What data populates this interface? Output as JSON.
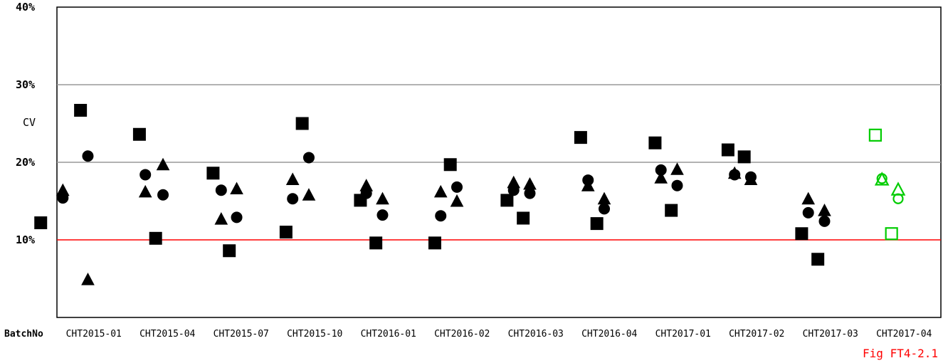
{
  "chart_data": {
    "type": "scatter",
    "xlabel": "BatchNo",
    "ylabel": "CV",
    "ylim": [
      0,
      40
    ],
    "yticks": [
      10,
      20,
      30,
      40
    ],
    "ytick_labels": [
      "10%",
      "20%",
      "30%",
      "40%"
    ],
    "grid": true,
    "reference_line": {
      "value": 10,
      "color": "#ff0000"
    },
    "figure_label": "Fig FT4-2.1",
    "figure_label_color": "#ff0000",
    "highlight_color": "#00cc00",
    "categories": [
      "CHT2015-01",
      "CHT2015-04",
      "CHT2015-07",
      "CHT2015-10",
      "CHT2016-01",
      "CHT2016-02",
      "CHT2016-03",
      "CHT2016-04",
      "CHT2017-01",
      "CHT2017-02",
      "CHT2017-03",
      "CHT2017-04"
    ],
    "points": [
      {
        "c": 0,
        "o": -0.22,
        "shape": "square",
        "y": 12.2
      },
      {
        "c": 0,
        "o": 0.32,
        "shape": "square",
        "y": 26.7
      },
      {
        "c": 0,
        "o": 0.08,
        "shape": "circle",
        "y": 15.4
      },
      {
        "c": 0,
        "o": 0.08,
        "shape": "triangle",
        "y": 16.4
      },
      {
        "c": 0,
        "o": 0.42,
        "shape": "circle",
        "y": 20.8
      },
      {
        "c": 0,
        "o": 0.42,
        "shape": "triangle",
        "y": 4.9
      },
      {
        "c": 1,
        "o": 0.12,
        "shape": "square",
        "y": 23.6
      },
      {
        "c": 1,
        "o": 0.34,
        "shape": "square",
        "y": 10.2
      },
      {
        "c": 1,
        "o": 0.2,
        "shape": "circle",
        "y": 18.4
      },
      {
        "c": 1,
        "o": 0.2,
        "shape": "triangle",
        "y": 16.2
      },
      {
        "c": 1,
        "o": 0.44,
        "shape": "circle",
        "y": 15.8
      },
      {
        "c": 1,
        "o": 0.44,
        "shape": "triangle",
        "y": 19.7
      },
      {
        "c": 2,
        "o": 0.12,
        "shape": "square",
        "y": 18.6
      },
      {
        "c": 2,
        "o": 0.34,
        "shape": "square",
        "y": 8.6
      },
      {
        "c": 2,
        "o": 0.23,
        "shape": "circle",
        "y": 16.4
      },
      {
        "c": 2,
        "o": 0.23,
        "shape": "triangle",
        "y": 12.7
      },
      {
        "c": 2,
        "o": 0.44,
        "shape": "circle",
        "y": 12.9
      },
      {
        "c": 2,
        "o": 0.44,
        "shape": "triangle",
        "y": 16.6
      },
      {
        "c": 3,
        "o": 0.11,
        "shape": "square",
        "y": 11.0
      },
      {
        "c": 3,
        "o": 0.33,
        "shape": "square",
        "y": 25.0
      },
      {
        "c": 3,
        "o": 0.2,
        "shape": "circle",
        "y": 15.3
      },
      {
        "c": 3,
        "o": 0.2,
        "shape": "triangle",
        "y": 17.8
      },
      {
        "c": 3,
        "o": 0.42,
        "shape": "circle",
        "y": 20.6
      },
      {
        "c": 3,
        "o": 0.42,
        "shape": "triangle",
        "y": 15.8
      },
      {
        "c": 4,
        "o": 0.12,
        "shape": "square",
        "y": 15.1
      },
      {
        "c": 4,
        "o": 0.33,
        "shape": "square",
        "y": 9.6
      },
      {
        "c": 4,
        "o": 0.2,
        "shape": "circle",
        "y": 16.0
      },
      {
        "c": 4,
        "o": 0.2,
        "shape": "triangle",
        "y": 17.0
      },
      {
        "c": 4,
        "o": 0.42,
        "shape": "circle",
        "y": 13.2
      },
      {
        "c": 4,
        "o": 0.42,
        "shape": "triangle",
        "y": 15.3
      },
      {
        "c": 5,
        "o": 0.13,
        "shape": "square",
        "y": 9.6
      },
      {
        "c": 5,
        "o": 0.34,
        "shape": "square",
        "y": 19.7
      },
      {
        "c": 5,
        "o": 0.21,
        "shape": "circle",
        "y": 13.1
      },
      {
        "c": 5,
        "o": 0.21,
        "shape": "triangle",
        "y": 16.2
      },
      {
        "c": 5,
        "o": 0.43,
        "shape": "circle",
        "y": 16.8
      },
      {
        "c": 5,
        "o": 0.43,
        "shape": "triangle",
        "y": 15.0
      },
      {
        "c": 6,
        "o": 0.11,
        "shape": "square",
        "y": 15.1
      },
      {
        "c": 6,
        "o": 0.33,
        "shape": "square",
        "y": 12.8
      },
      {
        "c": 6,
        "o": 0.2,
        "shape": "circle",
        "y": 16.4
      },
      {
        "c": 6,
        "o": 0.2,
        "shape": "triangle",
        "y": 17.4
      },
      {
        "c": 6,
        "o": 0.42,
        "shape": "circle",
        "y": 16.0
      },
      {
        "c": 6,
        "o": 0.42,
        "shape": "triangle",
        "y": 17.2
      },
      {
        "c": 7,
        "o": 0.11,
        "shape": "square",
        "y": 23.2
      },
      {
        "c": 7,
        "o": 0.33,
        "shape": "square",
        "y": 12.1
      },
      {
        "c": 7,
        "o": 0.21,
        "shape": "circle",
        "y": 17.7
      },
      {
        "c": 7,
        "o": 0.21,
        "shape": "triangle",
        "y": 17.0
      },
      {
        "c": 7,
        "o": 0.43,
        "shape": "circle",
        "y": 14.0
      },
      {
        "c": 7,
        "o": 0.43,
        "shape": "triangle",
        "y": 15.3
      },
      {
        "c": 8,
        "o": 0.12,
        "shape": "square",
        "y": 22.5
      },
      {
        "c": 8,
        "o": 0.34,
        "shape": "square",
        "y": 13.8
      },
      {
        "c": 8,
        "o": 0.2,
        "shape": "circle",
        "y": 19.0
      },
      {
        "c": 8,
        "o": 0.2,
        "shape": "triangle",
        "y": 18.0
      },
      {
        "c": 8,
        "o": 0.42,
        "shape": "circle",
        "y": 17.0
      },
      {
        "c": 8,
        "o": 0.42,
        "shape": "triangle",
        "y": 19.1
      },
      {
        "c": 9,
        "o": 0.11,
        "shape": "square",
        "y": 21.6
      },
      {
        "c": 9,
        "o": 0.33,
        "shape": "square",
        "y": 20.7
      },
      {
        "c": 9,
        "o": 0.2,
        "shape": "circle",
        "y": 18.4
      },
      {
        "c": 9,
        "o": 0.2,
        "shape": "triangle",
        "y": 18.6
      },
      {
        "c": 9,
        "o": 0.42,
        "shape": "circle",
        "y": 18.1
      },
      {
        "c": 9,
        "o": 0.42,
        "shape": "triangle",
        "y": 17.8
      },
      {
        "c": 10,
        "o": 0.11,
        "shape": "square",
        "y": 10.8
      },
      {
        "c": 10,
        "o": 0.33,
        "shape": "square",
        "y": 7.5
      },
      {
        "c": 10,
        "o": 0.2,
        "shape": "circle",
        "y": 13.5
      },
      {
        "c": 10,
        "o": 0.2,
        "shape": "triangle",
        "y": 15.3
      },
      {
        "c": 10,
        "o": 0.42,
        "shape": "circle",
        "y": 12.4
      },
      {
        "c": 10,
        "o": 0.42,
        "shape": "triangle",
        "y": 13.8
      },
      {
        "c": 11,
        "o": 0.11,
        "shape": "square",
        "y": 23.5,
        "hollow": true
      },
      {
        "c": 11,
        "o": 0.33,
        "shape": "square",
        "y": 10.8,
        "hollow": true
      },
      {
        "c": 11,
        "o": 0.2,
        "shape": "circle",
        "y": 17.9,
        "hollow": true
      },
      {
        "c": 11,
        "o": 0.2,
        "shape": "triangle",
        "y": 17.8,
        "hollow": true
      },
      {
        "c": 11,
        "o": 0.42,
        "shape": "circle",
        "y": 15.3,
        "hollow": true
      },
      {
        "c": 11,
        "o": 0.42,
        "shape": "triangle",
        "y": 16.5,
        "hollow": true
      }
    ]
  }
}
